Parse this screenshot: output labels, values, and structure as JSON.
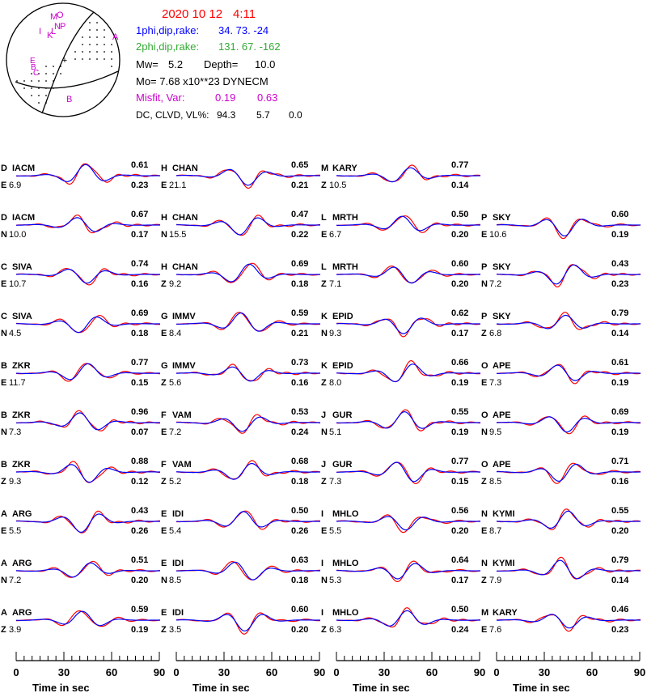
{
  "header": {
    "date": "2020 10 12",
    "time": "4:11",
    "plane1_label": "1phi,dip,rake:",
    "plane1_value": "34. 73.  -24",
    "plane2_label": "2phi,dip,rake:",
    "plane2_value": "131. 67. -162",
    "mw_label": "Mw=",
    "mw_value": "5.2",
    "depth_label": "Depth=",
    "depth_value": "10.0",
    "mo_text": "Mo=  7.68 x10**23 DYNECM",
    "misfit_label": "Misfit, Var:",
    "misfit_value": "0.19",
    "var_value": "0.63",
    "dc_label": "DC, CLVD, VL%:",
    "dc_value": "94.3",
    "clvd_value": "5.7",
    "vl_value": "0.0"
  },
  "beachball": {
    "center_symbol": "+",
    "letters": [
      {
        "text": "M"
      },
      {
        "text": "O"
      },
      {
        "text": "N"
      },
      {
        "text": "I"
      },
      {
        "text": "K"
      },
      {
        "text": "L"
      },
      {
        "text": "P"
      },
      {
        "text": "A"
      },
      {
        "text": "B"
      },
      {
        "text": "E"
      },
      {
        "text": "C"
      },
      {
        "text": "B"
      }
    ]
  },
  "colors": {
    "observed": "#ff0000",
    "synthetic": "#0000ff",
    "date_color": "#ff0000",
    "plane1_color": "#0000ff",
    "plane2_color": "#33aa33",
    "misfit_color": "#cc00cc",
    "station_letter_color": "#cc00cc"
  },
  "time_axis": {
    "label": "Time  in sec",
    "ticks": [
      "0",
      "30",
      "60",
      "90"
    ],
    "range": [
      0,
      90
    ]
  },
  "chart_data": {
    "type": "line",
    "description_series": [
      "observed",
      "synthetic"
    ],
    "columns": [
      [
        {
          "code": "D",
          "station": "IACM",
          "comp": "E",
          "dist": "6.9",
          "cc": "0.61",
          "var": "0.23"
        },
        {
          "code": "D",
          "station": "IACM",
          "comp": "N",
          "dist": "10.0",
          "cc": "0.67",
          "var": "0.17"
        },
        {
          "code": "C",
          "station": "SIVA",
          "comp": "E",
          "dist": "10.7",
          "cc": "0.74",
          "var": "0.16"
        },
        {
          "code": "C",
          "station": "SIVA",
          "comp": "N",
          "dist": "4.5",
          "cc": "0.69",
          "var": "0.18"
        },
        {
          "code": "B",
          "station": "ZKR",
          "comp": "E",
          "dist": "11.7",
          "cc": "0.77",
          "var": "0.15"
        },
        {
          "code": "B",
          "station": "ZKR",
          "comp": "N",
          "dist": "7.3",
          "cc": "0.96",
          "var": "0.07"
        },
        {
          "code": "B",
          "station": "ZKR",
          "comp": "Z",
          "dist": "9.3",
          "cc": "0.88",
          "var": "0.12"
        },
        {
          "code": "A",
          "station": "ARG",
          "comp": "E",
          "dist": "5.5",
          "cc": "0.43",
          "var": "0.26"
        },
        {
          "code": "A",
          "station": "ARG",
          "comp": "N",
          "dist": "7.2",
          "cc": "0.51",
          "var": "0.20"
        },
        {
          "code": "A",
          "station": "ARG",
          "comp": "Z",
          "dist": "3.9",
          "cc": "0.59",
          "var": "0.19"
        }
      ],
      [
        {
          "code": "H",
          "station": "CHAN",
          "comp": "E",
          "dist": "21.1",
          "cc": "0.65",
          "var": "0.21"
        },
        {
          "code": "H",
          "station": "CHAN",
          "comp": "N",
          "dist": "15.5",
          "cc": "0.47",
          "var": "0.22"
        },
        {
          "code": "H",
          "station": "CHAN",
          "comp": "Z",
          "dist": "9.2",
          "cc": "0.69",
          "var": "0.18"
        },
        {
          "code": "G",
          "station": "IMMV",
          "comp": "E",
          "dist": "8.4",
          "cc": "0.59",
          "var": "0.21"
        },
        {
          "code": "G",
          "station": "IMMV",
          "comp": "Z",
          "dist": "5.6",
          "cc": "0.73",
          "var": "0.16"
        },
        {
          "code": "F",
          "station": "VAM",
          "comp": "E",
          "dist": "7.2",
          "cc": "0.53",
          "var": "0.24"
        },
        {
          "code": "F",
          "station": "VAM",
          "comp": "Z",
          "dist": "5.2",
          "cc": "0.68",
          "var": "0.18"
        },
        {
          "code": "E",
          "station": "IDI",
          "comp": "E",
          "dist": "5.4",
          "cc": "0.50",
          "var": "0.26"
        },
        {
          "code": "E",
          "station": "IDI",
          "comp": "N",
          "dist": "8.5",
          "cc": "0.63",
          "var": "0.18"
        },
        {
          "code": "E",
          "station": "IDI",
          "comp": "Z",
          "dist": "3.5",
          "cc": "0.60",
          "var": "0.20"
        }
      ],
      [
        {
          "code": "M",
          "station": "KARY",
          "comp": "Z",
          "dist": "10.5",
          "cc": "0.77",
          "var": "0.14"
        },
        {
          "code": "L",
          "station": "MRTH",
          "comp": "E",
          "dist": "6.7",
          "cc": "0.50",
          "var": "0.20"
        },
        {
          "code": "L",
          "station": "MRTH",
          "comp": "Z",
          "dist": "7.1",
          "cc": "0.60",
          "var": "0.20"
        },
        {
          "code": "K",
          "station": "EPID",
          "comp": "N",
          "dist": "9.3",
          "cc": "0.62",
          "var": "0.17"
        },
        {
          "code": "K",
          "station": "EPID",
          "comp": "Z",
          "dist": "8.0",
          "cc": "0.66",
          "var": "0.19"
        },
        {
          "code": "J",
          "station": "GUR",
          "comp": "N",
          "dist": "5.1",
          "cc": "0.55",
          "var": "0.19"
        },
        {
          "code": "J",
          "station": "GUR",
          "comp": "Z",
          "dist": "7.3",
          "cc": "0.77",
          "var": "0.15"
        },
        {
          "code": "I",
          "station": "MHLO",
          "comp": "E",
          "dist": "5.5",
          "cc": "0.56",
          "var": "0.20"
        },
        {
          "code": "I",
          "station": "MHLO",
          "comp": "N",
          "dist": "5.3",
          "cc": "0.64",
          "var": "0.17"
        },
        {
          "code": "I",
          "station": "MHLO",
          "comp": "Z",
          "dist": "6.3",
          "cc": "0.50",
          "var": "0.24"
        }
      ],
      [
        null,
        {
          "code": "P",
          "station": "SKY",
          "comp": "E",
          "dist": "10.6",
          "cc": "0.60",
          "var": "0.19"
        },
        {
          "code": "P",
          "station": "SKY",
          "comp": "N",
          "dist": "7.2",
          "cc": "0.43",
          "var": "0.23"
        },
        {
          "code": "P",
          "station": "SKY",
          "comp": "Z",
          "dist": "6.8",
          "cc": "0.79",
          "var": "0.14"
        },
        {
          "code": "O",
          "station": "APE",
          "comp": "E",
          "dist": "7.3",
          "cc": "0.61",
          "var": "0.19"
        },
        {
          "code": "O",
          "station": "APE",
          "comp": "N",
          "dist": "9.5",
          "cc": "0.69",
          "var": "0.19"
        },
        {
          "code": "O",
          "station": "APE",
          "comp": "Z",
          "dist": "8.5",
          "cc": "0.71",
          "var": "0.16"
        },
        {
          "code": "N",
          "station": "KYMI",
          "comp": "E",
          "dist": "8.7",
          "cc": "0.55",
          "var": "0.20"
        },
        {
          "code": "N",
          "station": "KYMI",
          "comp": "Z",
          "dist": "7.9",
          "cc": "0.79",
          "var": "0.14"
        },
        {
          "code": "M",
          "station": "KARY",
          "comp": "E",
          "dist": "7.6",
          "cc": "0.46",
          "var": "0.23"
        }
      ]
    ]
  }
}
